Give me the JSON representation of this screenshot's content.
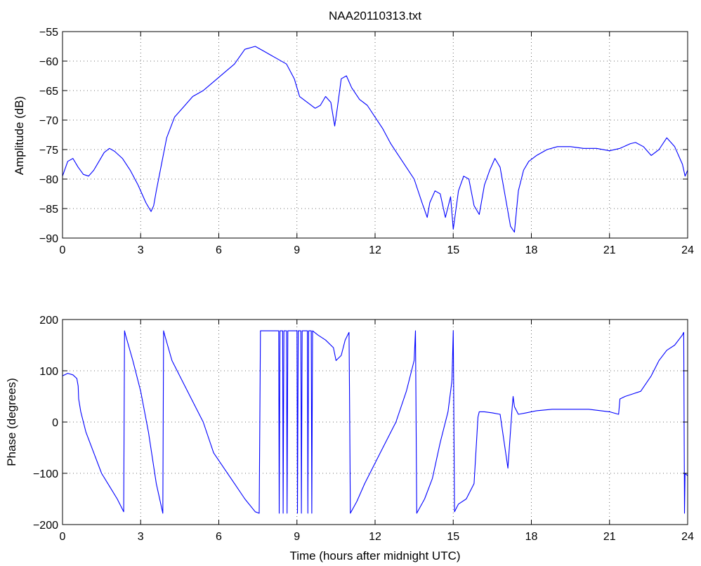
{
  "colors": {
    "series": "#0000ff",
    "axes": "#000000",
    "background": "#ffffff"
  },
  "chart_data": [
    {
      "type": "line",
      "title": "NAA20110313.txt",
      "xlabel": "",
      "ylabel": "Amplitude (dB)",
      "xlim": [
        0,
        24
      ],
      "ylim": [
        -90,
        -55
      ],
      "grid": true,
      "xticks": [
        0,
        3,
        6,
        9,
        12,
        15,
        18,
        21,
        24
      ],
      "yticks": [
        -90,
        -85,
        -80,
        -75,
        -70,
        -65,
        -60,
        -55
      ],
      "xtick_labels": [
        "0",
        "3",
        "6",
        "9",
        "12",
        "15",
        "18",
        "21",
        "24"
      ],
      "ytick_labels": [
        "−90",
        "−85",
        "−80",
        "−75",
        "−70",
        "−65",
        "−60",
        "−55"
      ],
      "series": [
        {
          "x": [
            0,
            0.2,
            0.4,
            0.6,
            0.8,
            1.0,
            1.2,
            1.4,
            1.6,
            1.8,
            2.0,
            2.3,
            2.6,
            2.9,
            3.2,
            3.4,
            3.5,
            3.6,
            3.8,
            4.0,
            4.3,
            4.6,
            5.0,
            5.4,
            5.8,
            6.2,
            6.6,
            7.0,
            7.4,
            7.8,
            8.2,
            8.6,
            8.9,
            9.1,
            9.4,
            9.7,
            9.9,
            10.1,
            10.3,
            10.45,
            10.55,
            10.7,
            10.9,
            11.1,
            11.4,
            11.7,
            12.0,
            12.3,
            12.6,
            12.9,
            13.2,
            13.5,
            13.8,
            14.0,
            14.1,
            14.3,
            14.5,
            14.7,
            14.9,
            15.0,
            15.2,
            15.4,
            15.6,
            15.8,
            16.0,
            16.2,
            16.4,
            16.6,
            16.8,
            17.0,
            17.2,
            17.35,
            17.5,
            17.7,
            17.9,
            18.2,
            18.6,
            19.0,
            19.5,
            20.0,
            20.5,
            21.0,
            21.4,
            21.8,
            22.0,
            22.3,
            22.6,
            22.9,
            23.2,
            23.5,
            23.8,
            23.9,
            24.0
          ],
          "values": [
            -79.5,
            -77.0,
            -76.5,
            -78.0,
            -79.2,
            -79.5,
            -78.5,
            -77.0,
            -75.5,
            -74.8,
            -75.3,
            -76.5,
            -78.5,
            -81.0,
            -84.0,
            -85.5,
            -84.5,
            -82.0,
            -77.5,
            -73.0,
            -69.5,
            -68.0,
            -66.0,
            -65.0,
            -63.5,
            -62.0,
            -60.5,
            -58.0,
            -57.5,
            -58.5,
            -59.5,
            -60.5,
            -63.0,
            -66.0,
            -67.0,
            -68.0,
            -67.5,
            -66.0,
            -67.0,
            -71.0,
            -68.0,
            -63.0,
            -62.5,
            -64.5,
            -66.5,
            -67.5,
            -69.5,
            -71.5,
            -74.0,
            -76.0,
            -78.0,
            -80.0,
            -84.0,
            -86.5,
            -84.0,
            -82.0,
            -82.5,
            -86.5,
            -83.0,
            -88.5,
            -82.0,
            -79.5,
            -80.0,
            -84.5,
            -86.0,
            -81.0,
            -78.5,
            -76.5,
            -78.0,
            -83.0,
            -88.0,
            -89.0,
            -82.0,
            -78.5,
            -77.0,
            -76.0,
            -75.0,
            -74.5,
            -74.5,
            -74.8,
            -74.8,
            -75.2,
            -74.8,
            -74.0,
            -73.8,
            -74.5,
            -76.0,
            -75.0,
            -73.0,
            -74.5,
            -77.5,
            -79.5,
            -78.5
          ]
        }
      ]
    },
    {
      "type": "line",
      "title": "",
      "xlabel": "Time (hours after midnight UTC)",
      "ylabel": "Phase (degrees)",
      "xlim": [
        0,
        24
      ],
      "ylim": [
        -200,
        200
      ],
      "grid": true,
      "xticks": [
        0,
        3,
        6,
        9,
        12,
        15,
        18,
        21,
        24
      ],
      "yticks": [
        -200,
        -100,
        0,
        100,
        200
      ],
      "xtick_labels": [
        "0",
        "3",
        "6",
        "9",
        "12",
        "15",
        "18",
        "21",
        "24"
      ],
      "ytick_labels": [
        "−200",
        "−100",
        "0",
        "100",
        "200"
      ],
      "series": [
        {
          "x": [
            0,
            0.2,
            0.4,
            0.55,
            0.6,
            0.62,
            0.7,
            0.9,
            1.2,
            1.5,
            1.8,
            2.1,
            2.35,
            2.38,
            2.42,
            2.7,
            3.0,
            3.3,
            3.6,
            3.85,
            3.88,
            3.92,
            4.2,
            4.6,
            5.0,
            5.4,
            5.8,
            6.2,
            6.6,
            7.0,
            7.4,
            7.55,
            7.6,
            8.0,
            8.3,
            8.32,
            8.35,
            8.45,
            8.47,
            8.5,
            8.6,
            8.62,
            8.65,
            9.0,
            9.02,
            9.05,
            9.15,
            9.17,
            9.2,
            9.4,
            9.42,
            9.45,
            9.55,
            9.57,
            9.6,
            9.8,
            10.1,
            10.4,
            10.5,
            10.7,
            10.85,
            11.0,
            11.02,
            11.05,
            11.3,
            11.6,
            12.0,
            12.4,
            12.8,
            13.2,
            13.5,
            13.55,
            13.6,
            13.9,
            14.2,
            14.5,
            14.8,
            14.95,
            15.0,
            15.05,
            15.2,
            15.5,
            15.8,
            15.95,
            16.0,
            16.2,
            16.5,
            16.8,
            17.1,
            17.25,
            17.3,
            17.35,
            17.5,
            17.8,
            18.2,
            18.8,
            19.5,
            20.2,
            21.0,
            21.35,
            21.4,
            21.6,
            21.9,
            22.2,
            22.6,
            22.9,
            23.2,
            23.5,
            23.8,
            23.85,
            23.88,
            23.9,
            24.0
          ],
          "values": [
            90,
            95,
            92,
            85,
            70,
            45,
            20,
            -20,
            -60,
            -100,
            -125,
            -150,
            -175,
            178,
            170,
            120,
            60,
            -20,
            -120,
            -178,
            178,
            170,
            120,
            80,
            40,
            0,
            -60,
            -90,
            -120,
            -150,
            -175,
            -178,
            178,
            178,
            178,
            -178,
            178,
            178,
            -178,
            178,
            178,
            -178,
            178,
            178,
            -178,
            178,
            178,
            -178,
            178,
            178,
            -178,
            178,
            178,
            -178,
            178,
            170,
            160,
            145,
            120,
            130,
            160,
            175,
            40,
            -178,
            -155,
            -120,
            -80,
            -40,
            0,
            60,
            120,
            178,
            -178,
            -150,
            -110,
            -40,
            20,
            80,
            178,
            -175,
            -160,
            -150,
            -120,
            10,
            20,
            20,
            18,
            15,
            -90,
            20,
            50,
            30,
            15,
            18,
            22,
            25,
            25,
            25,
            20,
            15,
            45,
            50,
            55,
            60,
            90,
            120,
            140,
            150,
            170,
            175,
            -178,
            -100,
            -105
          ]
        }
      ]
    }
  ]
}
